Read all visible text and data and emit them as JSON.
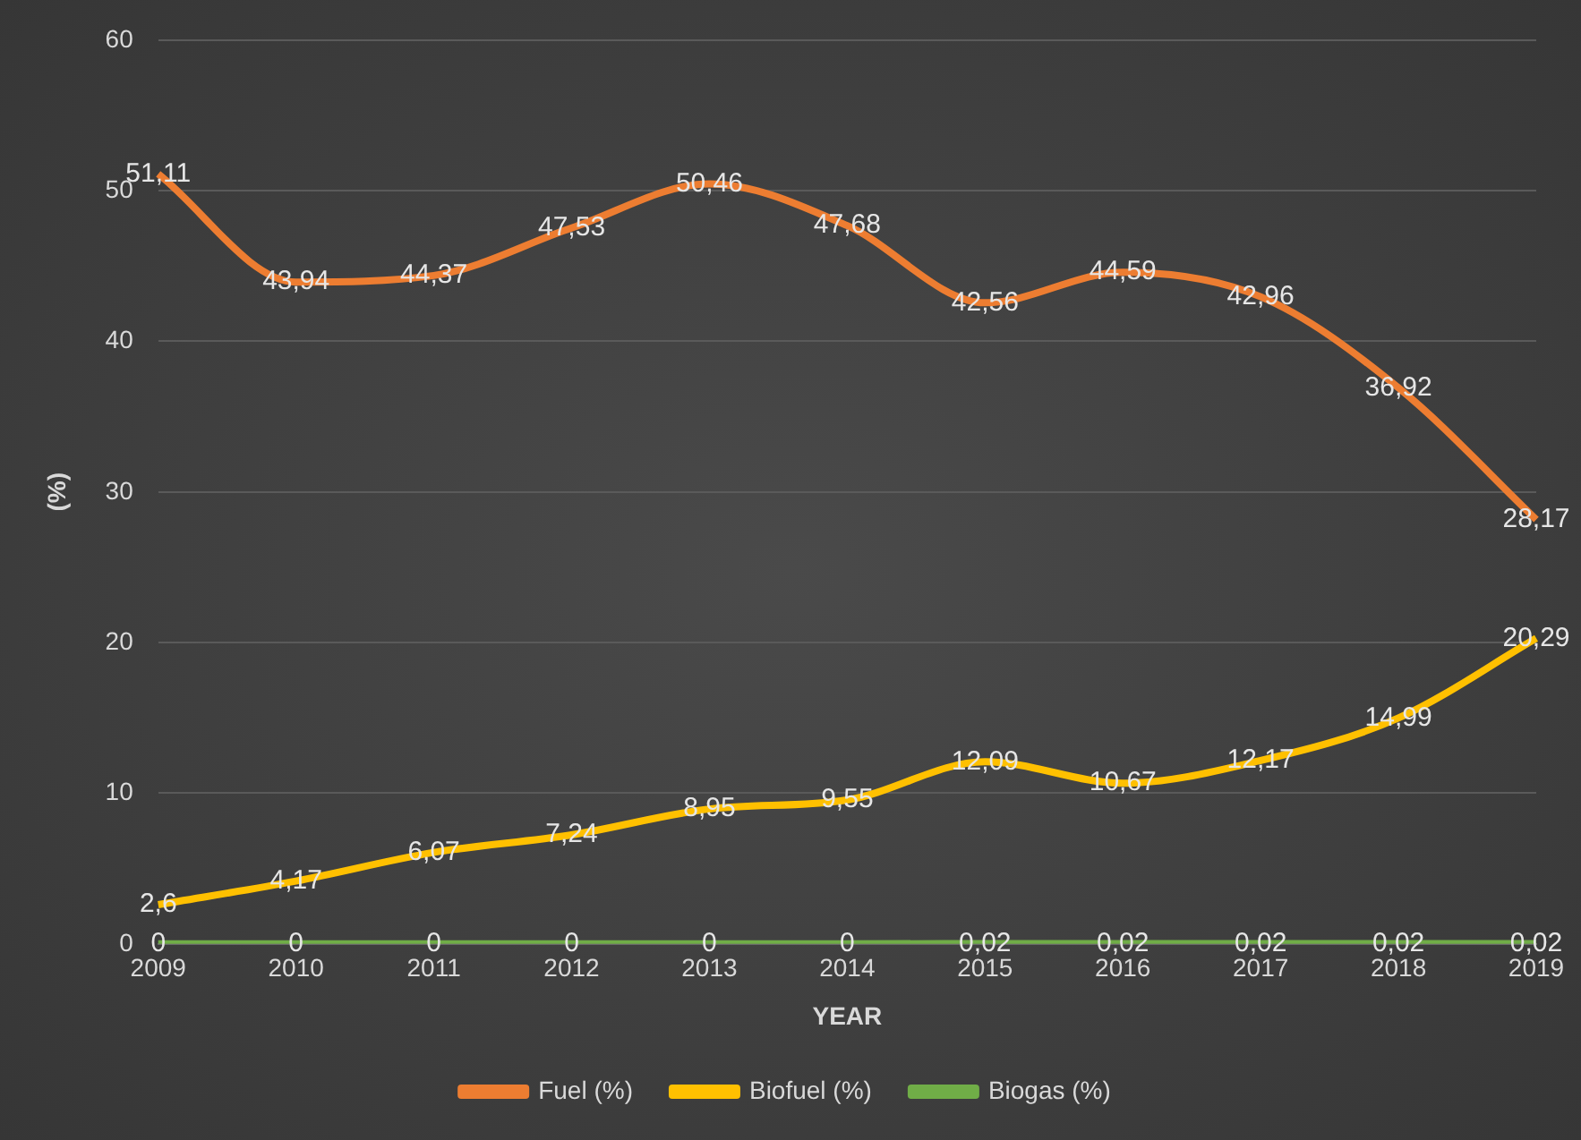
{
  "chart_data": {
    "type": "line",
    "xlabel": "YEAR",
    "ylabel": "(%)",
    "categories": [
      "2009",
      "2010",
      "2011",
      "2012",
      "2013",
      "2014",
      "2015",
      "2016",
      "2017",
      "2018",
      "2019"
    ],
    "series": [
      {
        "name": "Fuel (%)",
        "color": "#ed7d31",
        "values": [
          51.11,
          43.94,
          44.37,
          47.53,
          50.46,
          47.68,
          42.56,
          44.59,
          42.96,
          36.92,
          28.17
        ],
        "value_labels": [
          "51,11",
          "43,94",
          "44,37",
          "47,53",
          "50,46",
          "47,68",
          "42,56",
          "44,59",
          "42,96",
          "36,92",
          "28,17"
        ]
      },
      {
        "name": "Biofuel (%)",
        "color": "#ffc000",
        "values": [
          2.6,
          4.17,
          6.07,
          7.24,
          8.95,
          9.55,
          12.09,
          10.67,
          12.17,
          14.99,
          20.29
        ],
        "value_labels": [
          "2,6",
          "4,17",
          "6,07",
          "7,24",
          "8,95",
          "9,55",
          "12,09",
          "10,67",
          "12,17",
          "14,99",
          "20,29"
        ]
      },
      {
        "name": "Biogas (%)",
        "color": "#70ad47",
        "values": [
          0,
          0,
          0,
          0,
          0,
          0,
          0.02,
          0.02,
          0.02,
          0.02,
          0.02
        ],
        "value_labels": [
          "0",
          "0",
          "0",
          "0",
          "0",
          "0",
          "0,02",
          "0,02",
          "0,02",
          "0,02",
          "0,02"
        ]
      }
    ],
    "ylim": [
      0,
      60
    ],
    "yticks": [
      0,
      10,
      20,
      30,
      40,
      50,
      60
    ],
    "grid": "y",
    "legend": "bottom",
    "marker": "none",
    "line_style": "solid"
  }
}
